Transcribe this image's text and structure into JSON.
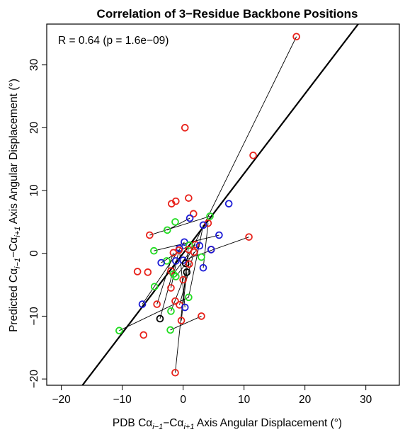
{
  "chart_data": {
    "type": "scatter",
    "title": "Correlation of 3−Residue Backbone Positions",
    "annotation": "R = 0.64 (p = 1.6e−09)",
    "xlabel": {
      "prefix": "PDB Cα",
      "sub1": "i−1",
      "mid": "−Cα",
      "sub2": "i+1",
      "suffix": " Axis Angular Displacement (°)"
    },
    "ylabel": {
      "prefix": "Predicted Cα",
      "sub1": "i−1",
      "mid": "−Cα",
      "sub2": "i+1",
      "suffix": " Axis Angular Displacement (°)"
    },
    "xlim": [
      -22.4,
      35.5
    ],
    "ylim": [
      -21.0,
      36.5
    ],
    "xticks": [
      -20,
      -10,
      0,
      10,
      20,
      30
    ],
    "yticks": [
      -20,
      -10,
      0,
      10,
      20,
      30
    ],
    "xtick_labels": [
      "−20",
      "−10",
      "0",
      "10",
      "20",
      "30"
    ],
    "ytick_labels": [
      "−20",
      "−10",
      "0",
      "10",
      "20",
      "30"
    ],
    "grid": false,
    "reference_line": {
      "slope": 1.27,
      "intercept": 0.0,
      "color": "#000000"
    },
    "colors": {
      "red": "#e8221b",
      "green": "#22dd22",
      "blue": "#1a1ad6",
      "black": "#000000"
    },
    "points": [
      {
        "x": 18.6,
        "y": 34.5,
        "c": "red"
      },
      {
        "x": 0.3,
        "y": 20.0,
        "c": "red"
      },
      {
        "x": 11.5,
        "y": 15.6,
        "c": "red"
      },
      {
        "x": 10.8,
        "y": 2.6,
        "c": "red"
      },
      {
        "x": 7.5,
        "y": 7.9,
        "c": "blue"
      },
      {
        "x": 0.9,
        "y": 8.8,
        "c": "red"
      },
      {
        "x": -1.2,
        "y": 8.3,
        "c": "red"
      },
      {
        "x": -1.9,
        "y": 7.9,
        "c": "red"
      },
      {
        "x": 1.7,
        "y": 6.3,
        "c": "red"
      },
      {
        "x": 1.1,
        "y": 5.6,
        "c": "blue"
      },
      {
        "x": 4.4,
        "y": 5.9,
        "c": "green"
      },
      {
        "x": 4.1,
        "y": 4.8,
        "c": "red"
      },
      {
        "x": 3.3,
        "y": 4.5,
        "c": "blue"
      },
      {
        "x": -1.3,
        "y": 5.0,
        "c": "green"
      },
      {
        "x": -2.6,
        "y": 3.7,
        "c": "green"
      },
      {
        "x": -5.5,
        "y": 2.9,
        "c": "red"
      },
      {
        "x": 5.9,
        "y": 2.9,
        "c": "blue"
      },
      {
        "x": 0.2,
        "y": 1.8,
        "c": "blue"
      },
      {
        "x": 2.0,
        "y": 1.4,
        "c": "red"
      },
      {
        "x": 1.0,
        "y": 1.3,
        "c": "green"
      },
      {
        "x": 2.7,
        "y": 1.2,
        "c": "blue"
      },
      {
        "x": -0.6,
        "y": 0.8,
        "c": "blue"
      },
      {
        "x": -0.7,
        "y": 0.5,
        "c": "red"
      },
      {
        "x": -1.6,
        "y": 0.1,
        "c": "red"
      },
      {
        "x": 0.9,
        "y": 0.6,
        "c": "red"
      },
      {
        "x": 1.8,
        "y": 0.2,
        "c": "red"
      },
      {
        "x": -4.8,
        "y": 0.4,
        "c": "green"
      },
      {
        "x": 4.6,
        "y": 0.6,
        "c": "red"
      },
      {
        "x": 4.6,
        "y": 0.6,
        "c": "blue"
      },
      {
        "x": 0.0,
        "y": -1.1,
        "c": "blue"
      },
      {
        "x": -1.2,
        "y": -1.2,
        "c": "blue"
      },
      {
        "x": -2.7,
        "y": -1.2,
        "c": "green"
      },
      {
        "x": -3.6,
        "y": -1.5,
        "c": "blue"
      },
      {
        "x": 0.4,
        "y": -1.6,
        "c": "black"
      },
      {
        "x": 1.0,
        "y": -1.7,
        "c": "red"
      },
      {
        "x": 3.0,
        "y": -0.6,
        "c": "green"
      },
      {
        "x": 3.3,
        "y": -2.3,
        "c": "blue"
      },
      {
        "x": -7.5,
        "y": -2.9,
        "c": "red"
      },
      {
        "x": -5.8,
        "y": -3.0,
        "c": "red"
      },
      {
        "x": -2.0,
        "y": -2.8,
        "c": "red"
      },
      {
        "x": 0.6,
        "y": -3.0,
        "c": "black"
      },
      {
        "x": -1.6,
        "y": -3.3,
        "c": "green"
      },
      {
        "x": -1.2,
        "y": -3.7,
        "c": "green"
      },
      {
        "x": 0.0,
        "y": -4.2,
        "c": "red"
      },
      {
        "x": -4.7,
        "y": -5.3,
        "c": "green"
      },
      {
        "x": -2.0,
        "y": -5.5,
        "c": "red"
      },
      {
        "x": 0.9,
        "y": -7.0,
        "c": "green"
      },
      {
        "x": -1.3,
        "y": -7.6,
        "c": "red"
      },
      {
        "x": -4.3,
        "y": -8.1,
        "c": "red"
      },
      {
        "x": -6.7,
        "y": -8.1,
        "c": "blue"
      },
      {
        "x": -0.6,
        "y": -8.2,
        "c": "red"
      },
      {
        "x": 0.3,
        "y": -8.6,
        "c": "blue"
      },
      {
        "x": -2.0,
        "y": -9.2,
        "c": "green"
      },
      {
        "x": 3.0,
        "y": -10.0,
        "c": "red"
      },
      {
        "x": -3.8,
        "y": -10.4,
        "c": "black"
      },
      {
        "x": -0.3,
        "y": -10.7,
        "c": "red"
      },
      {
        "x": -10.5,
        "y": -12.3,
        "c": "green"
      },
      {
        "x": -2.1,
        "y": -12.2,
        "c": "green"
      },
      {
        "x": -6.5,
        "y": -13.0,
        "c": "red"
      },
      {
        "x": -1.3,
        "y": -19.0,
        "c": "red"
      }
    ],
    "segments": [
      {
        "x1": 0.3,
        "y1": -1.6,
        "x2": 18.6,
        "y2": 34.5
      },
      {
        "x1": -6.7,
        "y1": -8.1,
        "x2": 0.2,
        "y2": 1.8
      },
      {
        "x1": -5.5,
        "y1": 2.9,
        "x2": 4.4,
        "y2": 5.9
      },
      {
        "x1": -10.5,
        "y1": -12.3,
        "x2": 0.9,
        "y2": -7.0
      },
      {
        "x1": -2.1,
        "y1": -12.2,
        "x2": 3.0,
        "y2": -10.0
      },
      {
        "x1": -1.3,
        "y1": -19.0,
        "x2": 0.9,
        "y2": 1.3
      },
      {
        "x1": -4.8,
        "y1": 0.4,
        "x2": 5.9,
        "y2": 2.9
      },
      {
        "x1": -2.6,
        "y1": 3.7,
        "x2": 1.1,
        "y2": 5.6
      },
      {
        "x1": -4.3,
        "y1": -8.1,
        "x2": -1.6,
        "y2": 0.1
      },
      {
        "x1": -0.6,
        "y1": -8.2,
        "x2": 1.8,
        "y2": 0.2
      },
      {
        "x1": -2.0,
        "y1": -9.2,
        "x2": 1.0,
        "y2": -1.7
      },
      {
        "x1": -3.6,
        "y1": -1.5,
        "x2": 1.0,
        "y2": 1.3
      },
      {
        "x1": 0.3,
        "y1": -8.6,
        "x2": -0.6,
        "y2": 0.5
      },
      {
        "x1": 0.0,
        "y1": -1.1,
        "x2": 10.8,
        "y2": 2.6
      },
      {
        "x1": -1.2,
        "y1": -3.7,
        "x2": 2.7,
        "y2": 1.2
      },
      {
        "x1": -3.8,
        "y1": -10.4,
        "x2": -1.2,
        "y2": -1.2
      },
      {
        "x1": 0.9,
        "y1": -7.0,
        "x2": 3.3,
        "y2": 4.5
      },
      {
        "x1": -2.0,
        "y1": -5.5,
        "x2": -0.7,
        "y2": 0.5
      },
      {
        "x1": -1.6,
        "y1": -3.3,
        "x2": 2.0,
        "y2": 1.4
      },
      {
        "x1": -0.3,
        "y1": -10.7,
        "x2": 0.6,
        "y2": -3.0
      },
      {
        "x1": 3.3,
        "y1": -2.3,
        "x2": 4.1,
        "y2": 4.8
      }
    ]
  }
}
